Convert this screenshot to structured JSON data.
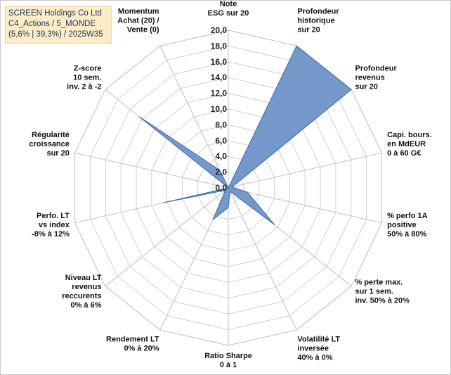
{
  "title_lines": [
    "SCREEN Holdings Co Ltd",
    "C4_Actions / 5_MONDE",
    "(5,6% | 39,3%) / 2025W35"
  ],
  "chart_data": {
    "type": "radar",
    "max": 20,
    "step": 2,
    "tick_labels": [
      "0,0",
      "2,0",
      "4,0",
      "6,0",
      "8,0",
      "10,0",
      "12,0",
      "14,0",
      "16,0",
      "18,0",
      "20,0"
    ],
    "axes": [
      {
        "label": [
          "Note",
          "ESG sur 20"
        ],
        "value": 0
      },
      {
        "label": [
          "Profondeur",
          "historique",
          "sur 20"
        ],
        "value": 20
      },
      {
        "label": [
          "Profondeur",
          "revenus",
          "sur 20"
        ],
        "value": 20
      },
      {
        "label": [
          "Capi. bours.",
          "en MdEUR",
          "0 à 60 G€"
        ],
        "value": 0.5
      },
      {
        "label": [
          "% perfo 1A",
          "positive",
          "50% à 80%"
        ],
        "value": 2.5
      },
      {
        "label": [
          "% perte max.",
          "sur 1 sem.",
          "inv. 50% à 20%"
        ],
        "value": 7.5
      },
      {
        "label": [
          "Volatilité LT",
          "inversée",
          "40% à 0%"
        ],
        "value": 0.5
      },
      {
        "label": [
          "Ratio Sharpe",
          "0 à 1"
        ],
        "value": 2.5
      },
      {
        "label": [
          "Rendement LT",
          "0% à 20%"
        ],
        "value": 4.5
      },
      {
        "label": [
          "Niveau LT",
          "revenus",
          "reccurents",
          "0% à 6%"
        ],
        "value": 0.5
      },
      {
        "label": [
          "Perfo. LT",
          "vs index",
          "-8% à 12%"
        ],
        "value": 8.5
      },
      {
        "label": [
          "Régularité",
          "croissance",
          "sur 20"
        ],
        "value": 0
      },
      {
        "label": [
          "Z-score",
          "10 sem.",
          "inv. 2 à -2"
        ],
        "value": 14.5
      },
      {
        "label": [
          "Momentum",
          "Achat (20) /",
          "Vente (0)"
        ],
        "value": 2.5
      }
    ],
    "fill_color": "#6a90c8",
    "stroke_color": "#3e6aad",
    "grid_color": "#d0d0d0"
  }
}
